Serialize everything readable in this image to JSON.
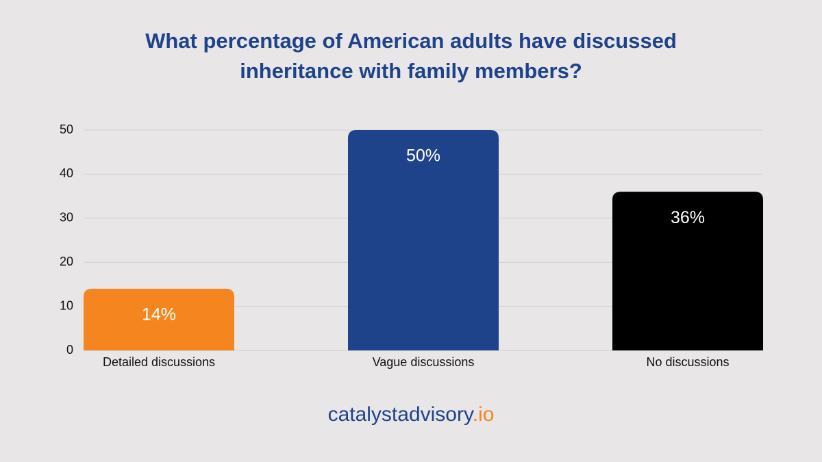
{
  "chart_data": {
    "type": "bar",
    "title": "What percentage of American adults have discussed inheritance with family members?",
    "categories": [
      "Detailed discussions",
      "Vague discussions",
      "No discussions"
    ],
    "values": [
      14,
      50,
      36
    ],
    "value_labels": [
      "14%",
      "50%",
      "36%"
    ],
    "colors": [
      "#f5861f",
      "#1f438a",
      "#000000"
    ],
    "ylim": [
      0,
      50
    ],
    "yticks": [
      0,
      10,
      20,
      30,
      40,
      50
    ],
    "grid": true
  },
  "branding": {
    "name": "catalystadvisory",
    "suffix": ".io"
  }
}
